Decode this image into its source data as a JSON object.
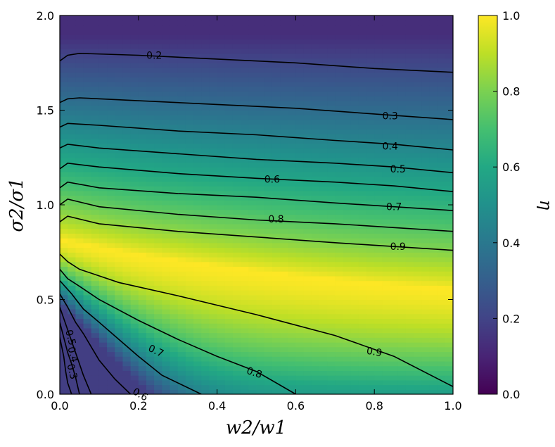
{
  "chart_data": {
    "type": "heatmap",
    "title": "",
    "xlabel": "w2/w1",
    "ylabel": "σ2/σ1",
    "colorbar_label": "η",
    "xlim": [
      0.0,
      1.0
    ],
    "ylim": [
      0.0,
      2.0
    ],
    "clim": [
      0.0,
      1.0
    ],
    "colormap": "viridis",
    "x_ticks": [
      "0.0",
      "0.2",
      "0.4",
      "0.6",
      "0.8",
      "1.0"
    ],
    "y_ticks": [
      "0.0",
      "0.5",
      "1.0",
      "1.5",
      "2.0"
    ],
    "colorbar_ticks": [
      "0.0",
      "0.2",
      "0.4",
      "0.6",
      "0.8",
      "1.0"
    ],
    "optimum_ridge": [
      {
        "x": 0.0,
        "y": 0.82
      },
      {
        "x": 0.2,
        "y": 0.74
      },
      {
        "x": 0.4,
        "y": 0.68
      },
      {
        "x": 0.6,
        "y": 0.63
      },
      {
        "x": 0.8,
        "y": 0.59
      },
      {
        "x": 1.0,
        "y": 0.56
      }
    ],
    "contours": [
      {
        "level": 0.2,
        "label": "0.2",
        "points": [
          [
            0.0,
            1.76
          ],
          [
            0.02,
            1.79
          ],
          [
            0.05,
            1.8
          ],
          [
            0.2,
            1.79
          ],
          [
            0.4,
            1.77
          ],
          [
            0.6,
            1.75
          ],
          [
            0.8,
            1.72
          ],
          [
            1.0,
            1.7
          ]
        ]
      },
      {
        "level": 0.3,
        "label": "0.3",
        "points": [
          [
            0.0,
            1.54
          ],
          [
            0.02,
            1.56
          ],
          [
            0.05,
            1.565
          ],
          [
            0.2,
            1.55
          ],
          [
            0.4,
            1.53
          ],
          [
            0.6,
            1.51
          ],
          [
            0.8,
            1.48
          ],
          [
            1.0,
            1.45
          ]
        ]
      },
      {
        "level": 0.4,
        "label": "0.4",
        "points": [
          [
            0.0,
            1.41
          ],
          [
            0.02,
            1.43
          ],
          [
            0.1,
            1.42
          ],
          [
            0.3,
            1.39
          ],
          [
            0.5,
            1.37
          ],
          [
            0.7,
            1.34
          ],
          [
            0.85,
            1.32
          ],
          [
            1.0,
            1.29
          ]
        ]
      },
      {
        "level": 0.5,
        "label": "0.5",
        "points": [
          [
            0.0,
            1.3
          ],
          [
            0.02,
            1.32
          ],
          [
            0.1,
            1.3
          ],
          [
            0.3,
            1.27
          ],
          [
            0.5,
            1.24
          ],
          [
            0.7,
            1.22
          ],
          [
            0.85,
            1.2
          ],
          [
            1.0,
            1.17
          ]
        ]
      },
      {
        "level": 0.6,
        "label": "0.6",
        "points": [
          [
            0.0,
            1.19
          ],
          [
            0.02,
            1.22
          ],
          [
            0.1,
            1.2
          ],
          [
            0.3,
            1.165
          ],
          [
            0.5,
            1.14
          ],
          [
            0.7,
            1.12
          ],
          [
            0.85,
            1.1
          ],
          [
            1.0,
            1.07
          ]
        ]
      },
      {
        "level": 0.7,
        "label": "0.7",
        "points": [
          [
            0.0,
            1.09
          ],
          [
            0.02,
            1.12
          ],
          [
            0.1,
            1.09
          ],
          [
            0.3,
            1.06
          ],
          [
            0.5,
            1.04
          ],
          [
            0.7,
            1.01
          ],
          [
            0.85,
            0.99
          ],
          [
            1.0,
            0.97
          ]
        ]
      },
      {
        "level": 0.8,
        "label": "0.8",
        "points": [
          [
            0.0,
            1.0
          ],
          [
            0.02,
            1.03
          ],
          [
            0.1,
            0.99
          ],
          [
            0.3,
            0.95
          ],
          [
            0.5,
            0.92
          ],
          [
            0.7,
            0.9
          ],
          [
            0.85,
            0.88
          ],
          [
            1.0,
            0.86
          ]
        ]
      },
      {
        "level": 0.9,
        "label": "0.9",
        "points": [
          [
            0.0,
            0.91
          ],
          [
            0.02,
            0.94
          ],
          [
            0.1,
            0.9
          ],
          [
            0.3,
            0.86
          ],
          [
            0.5,
            0.83
          ],
          [
            0.7,
            0.8
          ],
          [
            0.85,
            0.78
          ],
          [
            1.0,
            0.76
          ]
        ]
      },
      {
        "level": 0.9,
        "label": "0.9",
        "points": [
          [
            0.0,
            0.74
          ],
          [
            0.02,
            0.7
          ],
          [
            0.05,
            0.66
          ],
          [
            0.15,
            0.59
          ],
          [
            0.3,
            0.52
          ],
          [
            0.5,
            0.42
          ],
          [
            0.7,
            0.31
          ],
          [
            0.85,
            0.2
          ],
          [
            1.0,
            0.04
          ]
        ]
      },
      {
        "level": 0.8,
        "label": "0.8",
        "points": [
          [
            0.0,
            0.66
          ],
          [
            0.02,
            0.61
          ],
          [
            0.05,
            0.57
          ],
          [
            0.1,
            0.5
          ],
          [
            0.2,
            0.39
          ],
          [
            0.3,
            0.29
          ],
          [
            0.4,
            0.2
          ],
          [
            0.5,
            0.12
          ],
          [
            0.6,
            0.0
          ]
        ]
      },
      {
        "level": 0.7,
        "label": "0.7",
        "points": [
          [
            0.0,
            0.6
          ],
          [
            0.03,
            0.53
          ],
          [
            0.06,
            0.45
          ],
          [
            0.1,
            0.38
          ],
          [
            0.15,
            0.29
          ],
          [
            0.2,
            0.2
          ],
          [
            0.26,
            0.1
          ],
          [
            0.36,
            0.0
          ]
        ]
      },
      {
        "level": 0.6,
        "label": "0.6",
        "points": [
          [
            0.0,
            0.53
          ],
          [
            0.02,
            0.46
          ],
          [
            0.04,
            0.38
          ],
          [
            0.06,
            0.32
          ],
          [
            0.08,
            0.25
          ],
          [
            0.1,
            0.18
          ],
          [
            0.14,
            0.08
          ],
          [
            0.18,
            0.0
          ]
        ]
      },
      {
        "level": 0.5,
        "label": "0.5",
        "points": [
          [
            0.0,
            0.46
          ],
          [
            0.01,
            0.4
          ],
          [
            0.02,
            0.34
          ],
          [
            0.03,
            0.28
          ],
          [
            0.04,
            0.22
          ],
          [
            0.05,
            0.16
          ],
          [
            0.06,
            0.1
          ],
          [
            0.08,
            0.0
          ]
        ]
      },
      {
        "level": 0.4,
        "label": "0.4",
        "points": [
          [
            0.0,
            0.38
          ],
          [
            0.01,
            0.3
          ],
          [
            0.02,
            0.22
          ],
          [
            0.03,
            0.16
          ],
          [
            0.04,
            0.09
          ],
          [
            0.05,
            0.0
          ]
        ]
      },
      {
        "level": 0.3,
        "label": "0.3",
        "points": [
          [
            0.0,
            0.3
          ],
          [
            0.01,
            0.2
          ],
          [
            0.015,
            0.12
          ],
          [
            0.02,
            0.06
          ],
          [
            0.03,
            0.0
          ]
        ]
      }
    ],
    "contour_labels": [
      {
        "text": "0.2",
        "x": 0.24,
        "y": 1.79,
        "angle": 0
      },
      {
        "text": "0.3",
        "x": 0.84,
        "y": 1.47,
        "angle": 0
      },
      {
        "text": "0.4",
        "x": 0.84,
        "y": 1.31,
        "angle": 0
      },
      {
        "text": "0.5",
        "x": 0.86,
        "y": 1.19,
        "angle": 0
      },
      {
        "text": "0.6",
        "x": 0.54,
        "y": 1.135,
        "angle": 0
      },
      {
        "text": "0.7",
        "x": 0.85,
        "y": 0.99,
        "angle": 0
      },
      {
        "text": "0.8",
        "x": 0.55,
        "y": 0.925,
        "angle": 0
      },
      {
        "text": "0.9",
        "x": 0.86,
        "y": 0.78,
        "angle": 0
      },
      {
        "text": "0.9",
        "x": 0.8,
        "y": 0.225,
        "angle": 10
      },
      {
        "text": "0.8",
        "x": 0.495,
        "y": 0.115,
        "angle": 18
      },
      {
        "text": "0.7",
        "x": 0.245,
        "y": 0.23,
        "angle": 25
      },
      {
        "text": "0.6",
        "x": 0.205,
        "y": 0.0,
        "angle": 30
      },
      {
        "text": "0.5",
        "x": 0.028,
        "y": 0.3,
        "angle": 75
      },
      {
        "text": "0.4",
        "x": 0.034,
        "y": 0.21,
        "angle": 75
      },
      {
        "text": "0.3",
        "x": 0.032,
        "y": 0.12,
        "angle": 75
      }
    ],
    "grid": false
  }
}
